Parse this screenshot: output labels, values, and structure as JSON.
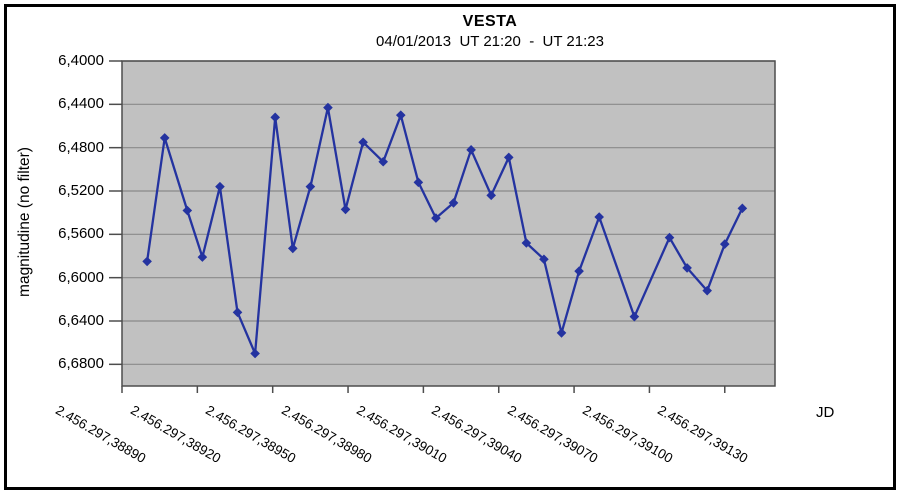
{
  "style": {
    "series_color": "#2433a0",
    "plot_bg": "#c1c1c1",
    "gridline_color": "#8a8a8a",
    "axis_color": "#4d4d4d",
    "frame_border_color": "#000000",
    "text_color": "#000000",
    "background": "#ffffff"
  },
  "chart_data": {
    "type": "line",
    "title": "VESTA",
    "subtitle": "04/01/2013  UT 21:20  -  UT 21:23",
    "xlabel": "JD",
    "ylabel": "magnitudine (no filter)",
    "legend": "none",
    "grid": "horizontal",
    "marker": "diamond",
    "y_axis_note": "magnitude scale, brighter (smaller value) at top",
    "ylim_top_to_bottom": [
      6.4,
      6.7
    ],
    "y_ticks": [
      {
        "value": 6.4,
        "label": "6,4000"
      },
      {
        "value": 6.44,
        "label": "6,4400"
      },
      {
        "value": 6.48,
        "label": "6,4800"
      },
      {
        "value": 6.52,
        "label": "6,5200"
      },
      {
        "value": 6.56,
        "label": "6,5600"
      },
      {
        "value": 6.6,
        "label": "6,6000"
      },
      {
        "value": 6.64,
        "label": "6,6400"
      },
      {
        "value": 6.68,
        "label": "6,6800"
      }
    ],
    "xlim": [
      2456297.3889,
      2456297.3915
    ],
    "x_ticks": [
      {
        "value": 2456297.3889,
        "label": "2.456.297,38890"
      },
      {
        "value": 2456297.3892,
        "label": "2.456.297,38920"
      },
      {
        "value": 2456297.3895,
        "label": "2.456.297,38950"
      },
      {
        "value": 2456297.3898,
        "label": "2.456.297,38980"
      },
      {
        "value": 2456297.3901,
        "label": "2.456.297,39010"
      },
      {
        "value": 2456297.3904,
        "label": "2.456.297,39040"
      },
      {
        "value": 2456297.3907,
        "label": "2.456.297,39070"
      },
      {
        "value": 2456297.391,
        "label": "2.456.297,39100"
      },
      {
        "value": 2456297.3913,
        "label": "2.456.297,39130"
      }
    ],
    "points": [
      {
        "jd": 2456297.389,
        "mag": 6.585
      },
      {
        "jd": 2456297.38907,
        "mag": 6.471
      },
      {
        "jd": 2456297.38916,
        "mag": 6.538
      },
      {
        "jd": 2456297.38922,
        "mag": 6.581
      },
      {
        "jd": 2456297.38929,
        "mag": 6.516
      },
      {
        "jd": 2456297.38936,
        "mag": 6.632
      },
      {
        "jd": 2456297.38943,
        "mag": 6.67
      },
      {
        "jd": 2456297.38951,
        "mag": 6.452
      },
      {
        "jd": 2456297.38958,
        "mag": 6.573
      },
      {
        "jd": 2456297.38965,
        "mag": 6.516
      },
      {
        "jd": 2456297.38972,
        "mag": 6.443
      },
      {
        "jd": 2456297.38979,
        "mag": 6.537
      },
      {
        "jd": 2456297.38986,
        "mag": 6.475
      },
      {
        "jd": 2456297.38994,
        "mag": 6.493
      },
      {
        "jd": 2456297.39001,
        "mag": 6.45
      },
      {
        "jd": 2456297.39008,
        "mag": 6.512
      },
      {
        "jd": 2456297.39015,
        "mag": 6.545
      },
      {
        "jd": 2456297.39022,
        "mag": 6.531
      },
      {
        "jd": 2456297.39029,
        "mag": 6.482
      },
      {
        "jd": 2456297.39037,
        "mag": 6.524
      },
      {
        "jd": 2456297.39044,
        "mag": 6.489
      },
      {
        "jd": 2456297.39051,
        "mag": 6.568
      },
      {
        "jd": 2456297.39058,
        "mag": 6.583
      },
      {
        "jd": 2456297.39065,
        "mag": 6.651
      },
      {
        "jd": 2456297.39072,
        "mag": 6.594
      },
      {
        "jd": 2456297.3908,
        "mag": 6.544
      },
      {
        "jd": 2456297.39094,
        "mag": 6.636
      },
      {
        "jd": 2456297.39108,
        "mag": 6.563
      },
      {
        "jd": 2456297.39115,
        "mag": 6.591
      },
      {
        "jd": 2456297.39123,
        "mag": 6.612
      },
      {
        "jd": 2456297.3913,
        "mag": 6.569
      },
      {
        "jd": 2456297.39137,
        "mag": 6.536
      }
    ]
  }
}
